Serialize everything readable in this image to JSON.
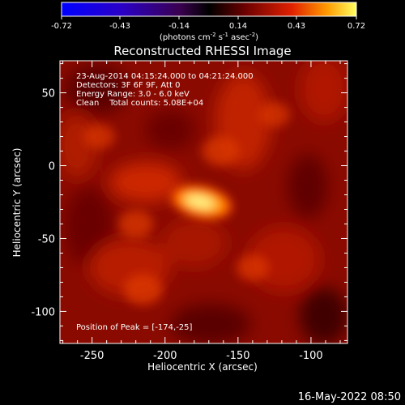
{
  "colorbar": {
    "ticks": [
      "-0.72",
      "-0.43",
      "-0.14",
      "0.14",
      "0.43",
      "0.72"
    ],
    "unit_prefix": "(photons cm",
    "unit_exp1": "-2",
    "unit_mid": " s",
    "unit_exp2": "-1",
    "unit_mid2": " asec",
    "unit_exp3": "-2",
    "unit_suffix": ")"
  },
  "footer": {
    "date_stamp": "16-May-2022 08:50"
  },
  "chart_data": {
    "type": "heatmap",
    "title": "Reconstructed RHESSI Image",
    "xlabel": "Heliocentric X (arcsec)",
    "ylabel": "Heliocentric Y (arcsec)",
    "xlim": [
      -272,
      -75
    ],
    "ylim": [
      -122,
      72
    ],
    "x_ticks": [
      -250,
      -200,
      -150,
      -100
    ],
    "y_ticks": [
      50,
      0,
      -50,
      -100
    ],
    "colorscale_range": [
      -0.72,
      0.72
    ],
    "annotations": [
      "23-Aug-2014 04:15:24.000 to 04:21:24.000",
      "Detectors: 3F 6F 9F, Att 0",
      "Energy Range: 3.0 - 6.0 keV",
      "Clean    Total counts: 5.08E+04"
    ],
    "peak_text": "Position of Peak = [-174,-25]",
    "sources": [
      {
        "x": -175,
        "y": -25,
        "intensity": 0.72
      },
      {
        "x": -162,
        "y": 10,
        "intensity": 0.18
      },
      {
        "x": -220,
        "y": -40,
        "intensity": 0.16
      },
      {
        "x": -215,
        "y": -85,
        "intensity": 0.2
      },
      {
        "x": -140,
        "y": -70,
        "intensity": 0.14
      },
      {
        "x": -245,
        "y": 20,
        "intensity": 0.12
      },
      {
        "x": -125,
        "y": 35,
        "intensity": 0.12
      }
    ]
  }
}
